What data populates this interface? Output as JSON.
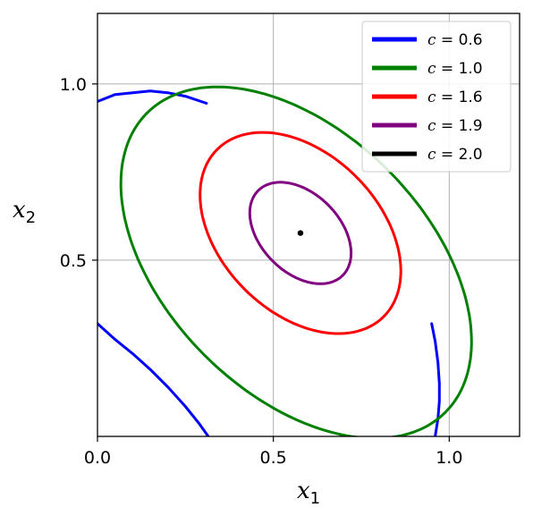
{
  "chart_data": {
    "type": "line",
    "title": "",
    "xlabel": "x",
    "xlabel_sub": "1",
    "ylabel": "x",
    "ylabel_sub": "2",
    "xlim": [
      0.0,
      1.2
    ],
    "ylim": [
      0.0,
      1.2
    ],
    "xticks": [
      0.0,
      0.5,
      1.0
    ],
    "xtick_labels": [
      "0.0",
      "0.5",
      "1.0"
    ],
    "yticks": [
      0.5,
      1.0
    ],
    "ytick_labels": [
      "0.5",
      "1.0"
    ],
    "grid": true,
    "legend_position": "top-right",
    "legend_symbol": "c",
    "series": [
      {
        "name": "= 0.6",
        "color": "#0000ff",
        "segments": [
          [
            [
              0.0,
              0.95
            ],
            [
              0.05,
              0.97
            ],
            [
              0.1,
              0.975
            ],
            [
              0.15,
              0.98
            ],
            [
              0.2,
              0.975
            ],
            [
              0.25,
              0.965
            ],
            [
              0.31,
              0.945
            ]
          ],
          [
            [
              0.0,
              0.32
            ],
            [
              0.05,
              0.275
            ],
            [
              0.1,
              0.235
            ],
            [
              0.15,
              0.19
            ],
            [
              0.2,
              0.14
            ],
            [
              0.25,
              0.085
            ],
            [
              0.29,
              0.035
            ],
            [
              0.315,
              0.0
            ]
          ],
          [
            [
              0.95,
              0.32
            ],
            [
              0.96,
              0.27
            ],
            [
              0.968,
              0.21
            ],
            [
              0.972,
              0.15
            ],
            [
              0.972,
              0.1
            ],
            [
              0.968,
              0.05
            ],
            [
              0.96,
              0.0
            ]
          ]
        ]
      },
      {
        "name": "= 1.0",
        "color": "#008000",
        "ellipse": {
          "cx": 0.565,
          "cy": 0.493,
          "a": 0.6,
          "b": 0.37,
          "angle": -45
        }
      },
      {
        "name": "= 1.6",
        "color": "#ff0000",
        "ellipse": {
          "cx": 0.577,
          "cy": 0.577,
          "a": 0.335,
          "b": 0.225,
          "angle": -45
        }
      },
      {
        "name": "= 1.9",
        "color": "#800080",
        "ellipse": {
          "cx": 0.577,
          "cy": 0.577,
          "a": 0.17,
          "b": 0.112,
          "angle": -45
        }
      },
      {
        "name": "= 2.0",
        "color": "#000000",
        "point": [
          0.577,
          0.577
        ]
      }
    ]
  }
}
